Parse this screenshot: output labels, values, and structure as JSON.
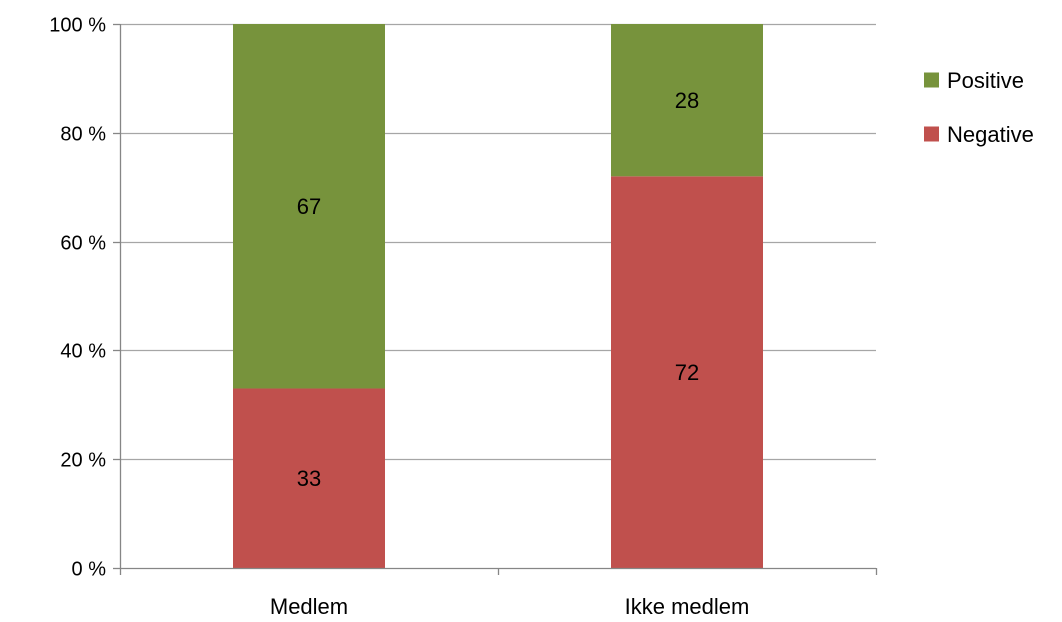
{
  "chart_data": {
    "type": "bar",
    "stacked": true,
    "percent_stacked": true,
    "categories": [
      "Medlem",
      "Ikke medlem"
    ],
    "series": [
      {
        "name": "Negative",
        "values": [
          33,
          72
        ],
        "color": "#c0504d"
      },
      {
        "name": "Positive",
        "values": [
          67,
          28
        ],
        "color": "#77933c"
      }
    ],
    "ylim": [
      0,
      100
    ],
    "yticks": [
      0,
      20,
      40,
      60,
      80,
      100
    ],
    "ytick_labels": [
      "0 %",
      "20 %",
      "40 %",
      "60 %",
      "80 %",
      "100 %"
    ],
    "grid": true,
    "legend": {
      "placement": "right",
      "entries": [
        "Positive",
        "Negative"
      ]
    },
    "colors": {
      "gridline": "#a6a6a6",
      "axis": "#868686",
      "text": "#000000"
    }
  }
}
